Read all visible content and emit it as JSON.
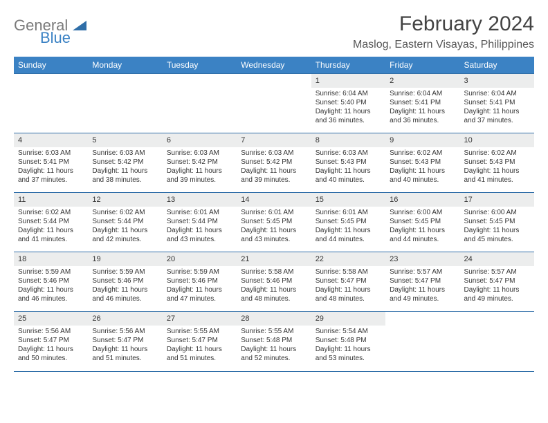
{
  "brand": {
    "word1": "General",
    "word2": "Blue"
  },
  "title": "February 2024",
  "location": "Maslog, Eastern Visayas, Philippines",
  "colors": {
    "header_bg": "#3b82c4",
    "header_text": "#ffffff",
    "daynum_bg": "#eceded",
    "border": "#2f6ea8",
    "text": "#333333",
    "brand_gray": "#7a7a7a",
    "brand_blue": "#3b82c4"
  },
  "day_headers": [
    "Sunday",
    "Monday",
    "Tuesday",
    "Wednesday",
    "Thursday",
    "Friday",
    "Saturday"
  ],
  "weeks": [
    [
      null,
      null,
      null,
      null,
      {
        "n": "1",
        "sr": "Sunrise: 6:04 AM",
        "ss": "Sunset: 5:40 PM",
        "dl": "Daylight: 11 hours and 36 minutes."
      },
      {
        "n": "2",
        "sr": "Sunrise: 6:04 AM",
        "ss": "Sunset: 5:41 PM",
        "dl": "Daylight: 11 hours and 36 minutes."
      },
      {
        "n": "3",
        "sr": "Sunrise: 6:04 AM",
        "ss": "Sunset: 5:41 PM",
        "dl": "Daylight: 11 hours and 37 minutes."
      }
    ],
    [
      {
        "n": "4",
        "sr": "Sunrise: 6:03 AM",
        "ss": "Sunset: 5:41 PM",
        "dl": "Daylight: 11 hours and 37 minutes."
      },
      {
        "n": "5",
        "sr": "Sunrise: 6:03 AM",
        "ss": "Sunset: 5:42 PM",
        "dl": "Daylight: 11 hours and 38 minutes."
      },
      {
        "n": "6",
        "sr": "Sunrise: 6:03 AM",
        "ss": "Sunset: 5:42 PM",
        "dl": "Daylight: 11 hours and 39 minutes."
      },
      {
        "n": "7",
        "sr": "Sunrise: 6:03 AM",
        "ss": "Sunset: 5:42 PM",
        "dl": "Daylight: 11 hours and 39 minutes."
      },
      {
        "n": "8",
        "sr": "Sunrise: 6:03 AM",
        "ss": "Sunset: 5:43 PM",
        "dl": "Daylight: 11 hours and 40 minutes."
      },
      {
        "n": "9",
        "sr": "Sunrise: 6:02 AM",
        "ss": "Sunset: 5:43 PM",
        "dl": "Daylight: 11 hours and 40 minutes."
      },
      {
        "n": "10",
        "sr": "Sunrise: 6:02 AM",
        "ss": "Sunset: 5:43 PM",
        "dl": "Daylight: 11 hours and 41 minutes."
      }
    ],
    [
      {
        "n": "11",
        "sr": "Sunrise: 6:02 AM",
        "ss": "Sunset: 5:44 PM",
        "dl": "Daylight: 11 hours and 41 minutes."
      },
      {
        "n": "12",
        "sr": "Sunrise: 6:02 AM",
        "ss": "Sunset: 5:44 PM",
        "dl": "Daylight: 11 hours and 42 minutes."
      },
      {
        "n": "13",
        "sr": "Sunrise: 6:01 AM",
        "ss": "Sunset: 5:44 PM",
        "dl": "Daylight: 11 hours and 43 minutes."
      },
      {
        "n": "14",
        "sr": "Sunrise: 6:01 AM",
        "ss": "Sunset: 5:45 PM",
        "dl": "Daylight: 11 hours and 43 minutes."
      },
      {
        "n": "15",
        "sr": "Sunrise: 6:01 AM",
        "ss": "Sunset: 5:45 PM",
        "dl": "Daylight: 11 hours and 44 minutes."
      },
      {
        "n": "16",
        "sr": "Sunrise: 6:00 AM",
        "ss": "Sunset: 5:45 PM",
        "dl": "Daylight: 11 hours and 44 minutes."
      },
      {
        "n": "17",
        "sr": "Sunrise: 6:00 AM",
        "ss": "Sunset: 5:45 PM",
        "dl": "Daylight: 11 hours and 45 minutes."
      }
    ],
    [
      {
        "n": "18",
        "sr": "Sunrise: 5:59 AM",
        "ss": "Sunset: 5:46 PM",
        "dl": "Daylight: 11 hours and 46 minutes."
      },
      {
        "n": "19",
        "sr": "Sunrise: 5:59 AM",
        "ss": "Sunset: 5:46 PM",
        "dl": "Daylight: 11 hours and 46 minutes."
      },
      {
        "n": "20",
        "sr": "Sunrise: 5:59 AM",
        "ss": "Sunset: 5:46 PM",
        "dl": "Daylight: 11 hours and 47 minutes."
      },
      {
        "n": "21",
        "sr": "Sunrise: 5:58 AM",
        "ss": "Sunset: 5:46 PM",
        "dl": "Daylight: 11 hours and 48 minutes."
      },
      {
        "n": "22",
        "sr": "Sunrise: 5:58 AM",
        "ss": "Sunset: 5:47 PM",
        "dl": "Daylight: 11 hours and 48 minutes."
      },
      {
        "n": "23",
        "sr": "Sunrise: 5:57 AM",
        "ss": "Sunset: 5:47 PM",
        "dl": "Daylight: 11 hours and 49 minutes."
      },
      {
        "n": "24",
        "sr": "Sunrise: 5:57 AM",
        "ss": "Sunset: 5:47 PM",
        "dl": "Daylight: 11 hours and 49 minutes."
      }
    ],
    [
      {
        "n": "25",
        "sr": "Sunrise: 5:56 AM",
        "ss": "Sunset: 5:47 PM",
        "dl": "Daylight: 11 hours and 50 minutes."
      },
      {
        "n": "26",
        "sr": "Sunrise: 5:56 AM",
        "ss": "Sunset: 5:47 PM",
        "dl": "Daylight: 11 hours and 51 minutes."
      },
      {
        "n": "27",
        "sr": "Sunrise: 5:55 AM",
        "ss": "Sunset: 5:47 PM",
        "dl": "Daylight: 11 hours and 51 minutes."
      },
      {
        "n": "28",
        "sr": "Sunrise: 5:55 AM",
        "ss": "Sunset: 5:48 PM",
        "dl": "Daylight: 11 hours and 52 minutes."
      },
      {
        "n": "29",
        "sr": "Sunrise: 5:54 AM",
        "ss": "Sunset: 5:48 PM",
        "dl": "Daylight: 11 hours and 53 minutes."
      },
      null,
      null
    ]
  ]
}
